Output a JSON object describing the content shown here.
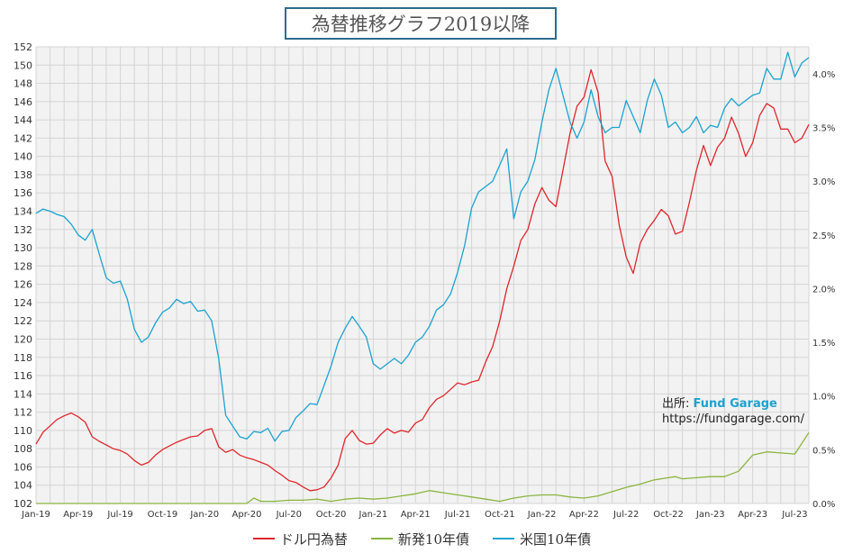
{
  "chart_data": {
    "type": "line",
    "title": "為替推移グラフ2019以降",
    "x_tick_labels": [
      "Jan-19",
      "Apr-19",
      "Jul-19",
      "Oct-19",
      "Jan-20",
      "Apr-20",
      "Jul-20",
      "Oct-20",
      "Jan-21",
      "Apr-21",
      "Jul-21",
      "Oct-21",
      "Jan-22",
      "Apr-22",
      "Jul-22",
      "Oct-22",
      "Jan-23",
      "Apr-23",
      "Jul-23"
    ],
    "x_range_months": [
      0,
      55
    ],
    "y_left": {
      "ticks": [
        102,
        104,
        106,
        108,
        110,
        112,
        114,
        116,
        118,
        120,
        122,
        124,
        126,
        128,
        130,
        132,
        134,
        136,
        138,
        140,
        142,
        144,
        146,
        148,
        150,
        152
      ],
      "range": [
        102,
        152
      ]
    },
    "y_right": {
      "ticks": [
        "0.0%",
        "0.5%",
        "1.0%",
        "1.5%",
        "2.0%",
        "2.5%",
        "3.0%",
        "3.5%",
        "4.0%"
      ],
      "range": [
        0,
        4.25
      ]
    },
    "grid": true,
    "legend_position": "bottom",
    "series": [
      {
        "name": "ドル円為替",
        "axis": "left",
        "color": "#e0262b",
        "x": [
          0,
          0.5,
          1,
          1.5,
          2,
          2.5,
          3,
          3.5,
          4,
          4.5,
          5,
          5.5,
          6,
          6.5,
          7,
          7.5,
          8,
          8.5,
          9,
          9.5,
          10,
          10.5,
          11,
          11.5,
          12,
          12.5,
          13,
          13.5,
          14,
          14.5,
          15,
          15.5,
          16,
          16.5,
          17,
          17.5,
          18,
          18.5,
          19,
          19.5,
          20,
          20.5,
          21,
          21.5,
          22,
          22.5,
          23,
          23.5,
          24,
          24.5,
          25,
          25.5,
          26,
          26.5,
          27,
          27.5,
          28,
          28.5,
          29,
          29.5,
          30,
          30.5,
          31,
          31.5,
          32,
          32.5,
          33,
          33.5,
          34,
          34.5,
          35,
          35.5,
          36,
          36.5,
          37,
          37.5,
          38,
          38.5,
          39,
          39.5,
          40,
          40.5,
          41,
          41.5,
          42,
          42.5,
          43,
          43.5,
          44,
          44.5,
          45,
          45.5,
          46,
          46.5,
          47,
          47.5,
          48,
          48.5,
          49,
          49.5,
          50,
          50.5,
          51,
          51.5,
          52,
          52.5,
          53,
          53.5,
          54,
          54.5,
          55
        ],
        "values": [
          108.5,
          109.8,
          110.5,
          111.2,
          111.6,
          111.9,
          111.5,
          110.9,
          109.3,
          108.8,
          108.4,
          108.0,
          107.8,
          107.4,
          106.7,
          106.2,
          106.5,
          107.3,
          107.9,
          108.3,
          108.7,
          109.0,
          109.3,
          109.4,
          110.0,
          110.2,
          108.2,
          107.6,
          107.9,
          107.3,
          107.0,
          106.8,
          106.5,
          106.2,
          105.6,
          105.1,
          104.5,
          104.3,
          103.8,
          103.4,
          103.5,
          103.8,
          104.8,
          106.2,
          109.1,
          110.0,
          108.9,
          108.5,
          108.6,
          109.5,
          110.2,
          109.7,
          110.0,
          109.8,
          110.8,
          111.2,
          112.5,
          113.4,
          113.8,
          114.5,
          115.2,
          115.0,
          115.3,
          115.5,
          117.5,
          119.2,
          122.0,
          125.5,
          128.0,
          130.8,
          132.0,
          134.8,
          136.6,
          135.2,
          134.5,
          138.5,
          142.5,
          145.5,
          146.5,
          149.5,
          147.0,
          139.5,
          137.8,
          132.5,
          129.0,
          127.2,
          130.5,
          132.0,
          133.0,
          134.2,
          133.5,
          131.5,
          131.8,
          135.0,
          138.5,
          141.2,
          139.0,
          141.0,
          142.0,
          144.3,
          142.5,
          140.0,
          141.5,
          144.5,
          145.8,
          145.3,
          143.0,
          143.0,
          141.5,
          142.0,
          143.5
        ]
      },
      {
        "name": "新発10年債",
        "axis": "right",
        "color": "#8ab53f",
        "x": [
          0,
          1,
          2,
          3,
          4,
          5,
          6,
          7,
          8,
          9,
          10,
          11,
          12,
          13,
          14,
          15,
          15.5,
          16,
          17,
          18,
          19,
          20,
          21,
          22,
          23,
          24,
          25,
          26,
          27,
          28,
          29,
          30,
          31,
          32,
          33,
          34,
          35,
          36,
          37,
          38,
          39,
          40,
          41,
          42,
          43,
          44,
          45,
          45.5,
          46,
          47,
          48,
          49,
          50,
          51,
          52,
          53,
          54,
          55
        ],
        "values": [
          0.0,
          0.0,
          0.0,
          0.0,
          0.0,
          0.0,
          0.0,
          0.0,
          0.0,
          0.0,
          0.0,
          0.0,
          0.0,
          0.0,
          0.0,
          0.0,
          0.05,
          0.02,
          0.02,
          0.03,
          0.03,
          0.04,
          0.02,
          0.04,
          0.05,
          0.04,
          0.05,
          0.07,
          0.09,
          0.12,
          0.1,
          0.08,
          0.06,
          0.04,
          0.02,
          0.05,
          0.07,
          0.08,
          0.08,
          0.06,
          0.05,
          0.07,
          0.11,
          0.15,
          0.18,
          0.22,
          0.24,
          0.25,
          0.23,
          0.24,
          0.25,
          0.25,
          0.3,
          0.45,
          0.48,
          0.47,
          0.46,
          0.66
        ]
      },
      {
        "name": "米国10年債",
        "axis": "right",
        "color": "#1aa3d0",
        "x": [
          0,
          0.5,
          1,
          1.5,
          2,
          2.5,
          3,
          3.5,
          4,
          4.5,
          5,
          5.5,
          6,
          6.5,
          7,
          7.5,
          8,
          8.5,
          9,
          9.5,
          10,
          10.5,
          11,
          11.5,
          12,
          12.5,
          13,
          13.5,
          14,
          14.5,
          15,
          15.5,
          16,
          16.5,
          17,
          17.5,
          18,
          18.5,
          19,
          19.5,
          20,
          20.5,
          21,
          21.5,
          22,
          22.5,
          23,
          23.5,
          24,
          24.5,
          25,
          25.5,
          26,
          26.5,
          27,
          27.5,
          28,
          28.5,
          29,
          29.5,
          30,
          30.5,
          31,
          31.5,
          32,
          32.5,
          33,
          33.5,
          34,
          34.5,
          35,
          35.5,
          36,
          36.5,
          37,
          37.5,
          38,
          38.5,
          39,
          39.5,
          40,
          40.5,
          41,
          41.5,
          42,
          42.5,
          43,
          43.5,
          44,
          44.5,
          45,
          45.5,
          46,
          46.5,
          47,
          47.5,
          48,
          48.5,
          49,
          49.5,
          50,
          50.5,
          51,
          51.5,
          52,
          52.5,
          53,
          53.5,
          54,
          54.5,
          55
        ],
        "values": [
          2.7,
          2.74,
          2.72,
          2.69,
          2.67,
          2.6,
          2.5,
          2.45,
          2.55,
          2.32,
          2.1,
          2.05,
          2.07,
          1.9,
          1.62,
          1.5,
          1.55,
          1.68,
          1.78,
          1.82,
          1.9,
          1.86,
          1.88,
          1.79,
          1.8,
          1.7,
          1.35,
          0.82,
          0.72,
          0.62,
          0.6,
          0.67,
          0.66,
          0.7,
          0.58,
          0.67,
          0.68,
          0.8,
          0.86,
          0.93,
          0.92,
          1.1,
          1.28,
          1.5,
          1.63,
          1.74,
          1.65,
          1.55,
          1.3,
          1.25,
          1.3,
          1.35,
          1.3,
          1.38,
          1.5,
          1.55,
          1.65,
          1.8,
          1.85,
          1.95,
          2.15,
          2.4,
          2.75,
          2.9,
          2.95,
          3.0,
          3.15,
          3.3,
          2.65,
          2.9,
          3.0,
          3.2,
          3.55,
          3.85,
          4.05,
          3.8,
          3.55,
          3.4,
          3.55,
          3.85,
          3.6,
          3.45,
          3.5,
          3.5,
          3.75,
          3.6,
          3.45,
          3.75,
          3.95,
          3.8,
          3.5,
          3.55,
          3.45,
          3.5,
          3.6,
          3.45,
          3.52,
          3.5,
          3.68,
          3.77,
          3.7,
          3.75,
          3.8,
          3.82,
          4.05,
          3.95,
          3.95,
          4.2,
          3.97,
          4.1,
          4.15
        ]
      }
    ]
  },
  "source": {
    "prefix": "出所: ",
    "brand": "Fund Garage",
    "url": "https://fundgarage.com/"
  }
}
